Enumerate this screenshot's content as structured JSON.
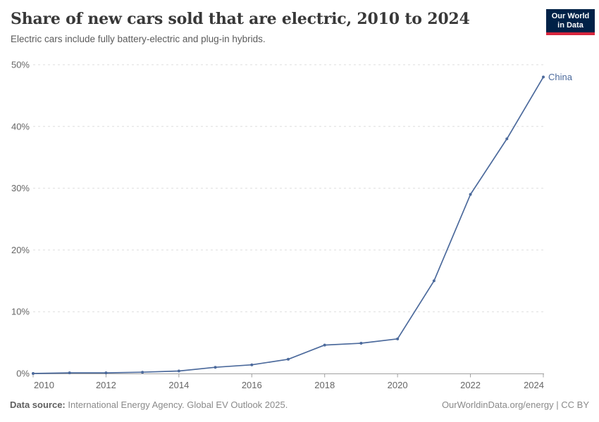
{
  "header": {
    "title": "Share of new cars sold that are electric, 2010 to 2024",
    "subtitle": "Electric cars include fully battery-electric and plug-in hybrids.",
    "logo": {
      "line1": "Our World",
      "line2": "in Data"
    }
  },
  "footer": {
    "source_label": "Data source:",
    "source_text": " International Energy Agency. Global EV Outlook 2025.",
    "credit": "OurWorldinData.org/energy | CC BY"
  },
  "chart_data": {
    "type": "line",
    "title": "Share of new cars sold that are electric, 2010 to 2024",
    "subtitle": "Electric cars include fully battery-electric and plug-in hybrids.",
    "xlabel": "",
    "ylabel": "",
    "x": [
      2010,
      2011,
      2012,
      2013,
      2014,
      2015,
      2016,
      2017,
      2018,
      2019,
      2020,
      2021,
      2022,
      2023,
      2024
    ],
    "series": [
      {
        "name": "China",
        "values": [
          0.0,
          0.1,
          0.1,
          0.2,
          0.4,
          1.0,
          1.4,
          2.3,
          4.6,
          4.9,
          5.6,
          15,
          29,
          38,
          48
        ]
      }
    ],
    "xticks": [
      2010,
      2012,
      2014,
      2016,
      2018,
      2020,
      2022,
      2024
    ],
    "yticks": [
      0,
      10,
      20,
      30,
      40,
      50
    ],
    "ytick_suffix": "%",
    "ylim": [
      0,
      50
    ],
    "grid": "horizontal-dashed",
    "legend_position": "end-of-line-label",
    "end_label": "China"
  },
  "colors": {
    "line": "#4c6a9c",
    "end_label": "#4c6a9c",
    "grid": "#dedede",
    "axis": "#a0a0a0",
    "tick_label": "#666666",
    "logo_bg": "#002147",
    "logo_stripe": "#d7263d"
  }
}
